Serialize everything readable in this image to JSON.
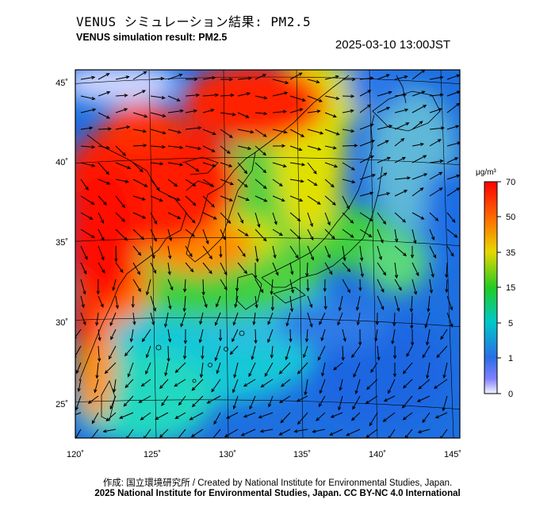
{
  "header": {
    "title_jp": "VENUS シミュレーション結果: PM2.5",
    "title_en": "VENUS simulation result: PM2.5",
    "timestamp": "2025-03-10 13:00JST"
  },
  "map": {
    "region": "East Asia / Japan",
    "variable": "PM2.5 concentration with wind vectors",
    "lat_labels": [
      "45˚",
      "40˚",
      "35˚",
      "30˚",
      "25˚"
    ],
    "lon_labels": [
      "120˚",
      "125˚",
      "130˚",
      "135˚",
      "140˚",
      "145˚"
    ]
  },
  "colorbar": {
    "unit_label": "μg/m³",
    "ticks": [
      "70",
      "50",
      "35",
      "15",
      "5",
      "1",
      "0"
    ],
    "colors": [
      "#ff0000",
      "#ff8c00",
      "#e6e600",
      "#00cc00",
      "#00bfbf",
      "#1a66e6",
      "#e0e0ff"
    ]
  },
  "credits": {
    "line1": "作成: 国立環境研究所 / Created by National Institute for Environmental Studies, Japan.",
    "line2": "2025 National Institute for Environmental Studies, Japan. CC BY-NC 4.0 International"
  }
}
